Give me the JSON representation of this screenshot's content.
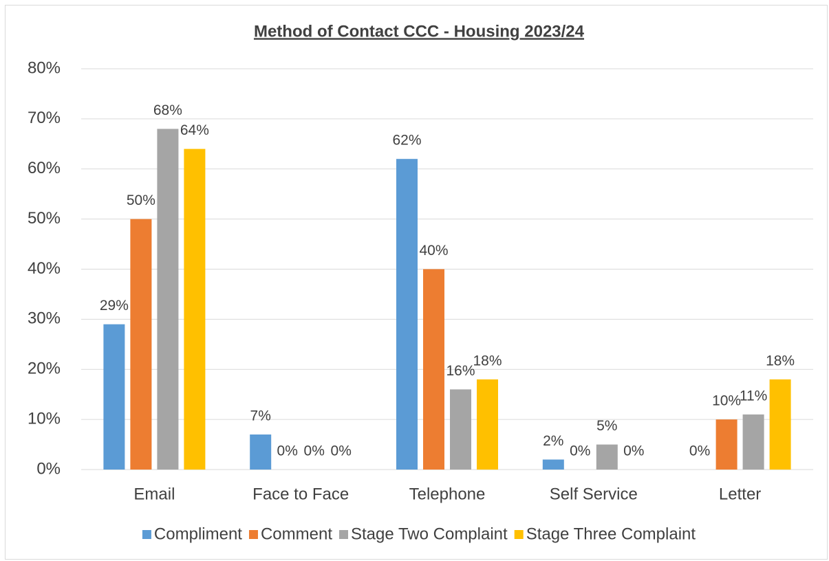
{
  "chart_data": {
    "type": "bar",
    "title": "Method of Contact CCC - Housing 2023/24",
    "categories": [
      "Email",
      "Face to Face",
      "Telephone",
      "Self Service",
      "Letter"
    ],
    "series": [
      {
        "name": "Compliment",
        "color": "#5b9bd5",
        "values": [
          29,
          7,
          62,
          2,
          0
        ],
        "value_labels": [
          "29%",
          "7%",
          "62%",
          "2%",
          "0%"
        ]
      },
      {
        "name": "Comment",
        "color": "#ed7d31",
        "values": [
          50,
          0,
          40,
          0,
          10
        ],
        "value_labels": [
          "50%",
          "0%",
          "40%",
          "0%",
          "10%"
        ]
      },
      {
        "name": "Stage Two Complaint",
        "color": "#a5a5a5",
        "values": [
          68,
          0,
          16,
          5,
          11
        ],
        "value_labels": [
          "68%",
          "0%",
          "16%",
          "5%",
          "11%"
        ]
      },
      {
        "name": "Stage Three Complaint",
        "color": "#ffc000",
        "values": [
          64,
          0,
          18,
          0,
          18
        ],
        "value_labels": [
          "64%",
          "0%",
          "18%",
          "0%",
          "18%"
        ]
      }
    ],
    "ylim": [
      0,
      80
    ],
    "yticks": [
      {
        "value": 0,
        "label": "0%"
      },
      {
        "value": 10,
        "label": "10%"
      },
      {
        "value": 20,
        "label": "20%"
      },
      {
        "value": 30,
        "label": "30%"
      },
      {
        "value": 40,
        "label": "40%"
      },
      {
        "value": 50,
        "label": "50%"
      },
      {
        "value": 60,
        "label": "60%"
      },
      {
        "value": 70,
        "label": "70%"
      },
      {
        "value": 80,
        "label": "80%"
      }
    ],
    "grid": true,
    "legend": "bottom"
  }
}
